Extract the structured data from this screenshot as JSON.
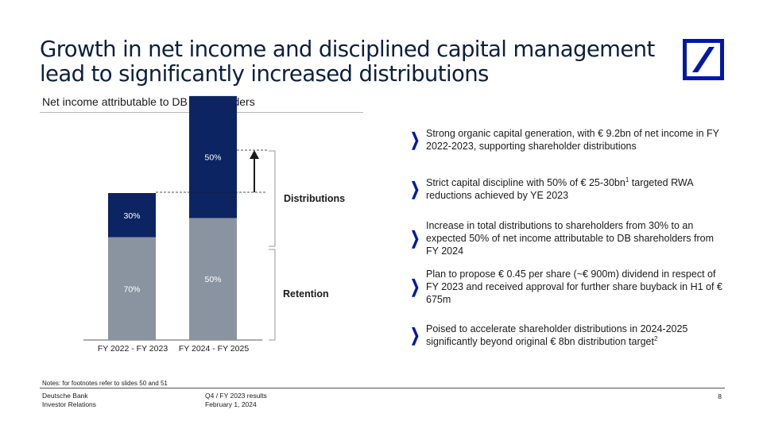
{
  "title": {
    "line1": "Growth in net income and disciplined capital management",
    "line2": "lead to significantly increased distributions"
  },
  "subtitle": "Net income attributable to DB shareholders",
  "chart_data": {
    "type": "bar",
    "stacked": true,
    "categories": [
      "FY 2022 - FY 2023",
      "FY 2024 - FY 2025"
    ],
    "series": [
      {
        "name": "Retention",
        "values": [
          70,
          50
        ],
        "labels": [
          "70%",
          "50%"
        ],
        "color": "#8a94a1"
      },
      {
        "name": "Distributions",
        "values": [
          30,
          50
        ],
        "labels": [
          "30%",
          "50%"
        ],
        "color": "#0c2461"
      }
    ],
    "relative_total": [
      1.0,
      1.66
    ],
    "segment_labels": [
      "Distributions",
      "Retention"
    ],
    "legend_placement": "right"
  },
  "bullets": [
    {
      "text": "Strong organic capital generation, with € 9.2bn of net income in FY 2022-2023, supporting shareholder distributions"
    },
    {
      "text": "Strict capital discipline with 50% of € 25-30bn",
      "sup": "1",
      "after": " targeted RWA reductions achieved by YE 2023"
    },
    {
      "text": "Increase in total distributions to shareholders from 30% to an expected 50% of net income attributable to DB shareholders from FY 2024"
    },
    {
      "text": "Plan to propose € 0.45 per share (~€ 900m) dividend in respect of FY 2023 and received approval for further share buyback in H1 of € 675m"
    },
    {
      "text": "Poised to accelerate shareholder distributions in 2024-2025 significantly beyond original € 8bn distribution target",
      "sup": "2",
      "after": ""
    }
  ],
  "notes": "Notes: for footnotes refer to slides 50 and 51",
  "footer": {
    "company": "Deutsche Bank",
    "department": "Investor Relations",
    "report": "Q4 / FY 2023 results",
    "date": "February 1, 2024",
    "page": "8"
  },
  "colors": {
    "brand_blue": "#0018a8",
    "navy": "#0c2461",
    "grey_bar": "#8a94a1"
  }
}
